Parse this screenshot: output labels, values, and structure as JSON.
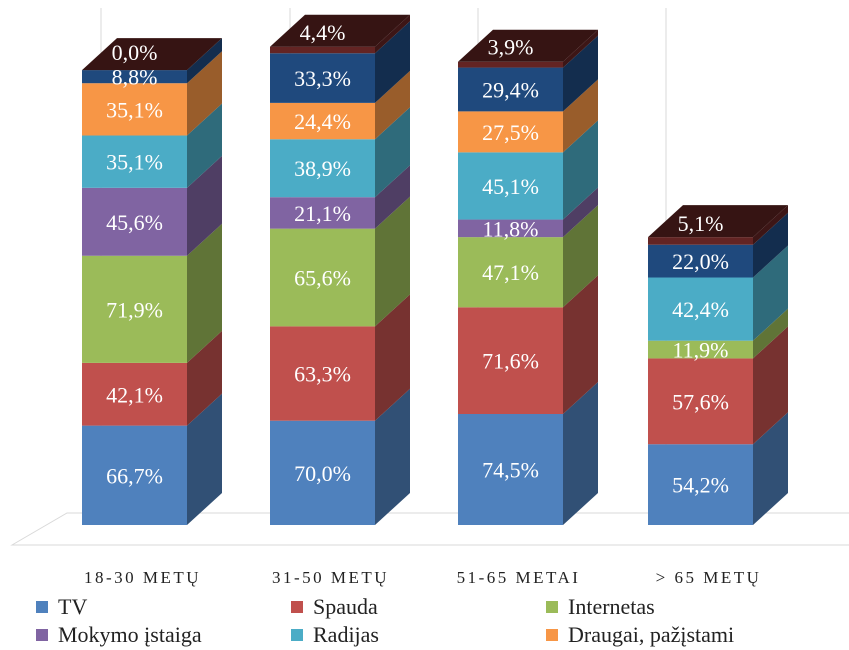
{
  "chart_data": {
    "type": "bar",
    "stacked": true,
    "three_d": true,
    "categories": [
      "18-30 METŲ",
      "31-50 METŲ",
      "51-65 METAI",
      "> 65 METŲ"
    ],
    "series": [
      {
        "name": "TV",
        "color": "#4f81bd",
        "values": [
          66.7,
          70.0,
          74.5,
          54.2
        ],
        "labels": [
          "66,7%",
          "70,0%",
          "74,5%",
          "54,2%"
        ]
      },
      {
        "name": "Spauda",
        "color": "#c0504d",
        "values": [
          42.1,
          63.3,
          71.6,
          57.6
        ],
        "labels": [
          "42,1%",
          "63,3%",
          "71,6%",
          "57,6%"
        ]
      },
      {
        "name": "Internetas",
        "color": "#9bbb59",
        "values": [
          71.9,
          65.6,
          47.1,
          11.9
        ],
        "labels": [
          "71,9%",
          "65,6%",
          "47,1%",
          "11,9%"
        ]
      },
      {
        "name": "Mokymo įstaiga",
        "color": "#8064a2",
        "values": [
          45.6,
          21.1,
          11.8,
          0
        ],
        "labels": [
          "45,6%",
          "21,1%",
          "11,8%",
          ""
        ]
      },
      {
        "name": "Radijas",
        "color": "#4bacc6",
        "values": [
          35.1,
          38.9,
          45.1,
          42.4
        ],
        "labels": [
          "35,1%",
          "38,9%",
          "45,1%",
          "42,4%"
        ]
      },
      {
        "name": "Draugai, pažįstami",
        "color": "#f79646",
        "values": [
          35.1,
          24.4,
          27.5,
          0
        ],
        "labels": [
          "35,1%",
          "24,4%",
          "27,5%",
          ""
        ]
      },
      {
        "name": "",
        "color": "#1f497d",
        "values": [
          8.8,
          33.3,
          29.4,
          22.0
        ],
        "labels": [
          "8,8%",
          "33,3%",
          "29,4%",
          "22,0%"
        ]
      },
      {
        "name": "",
        "color": "#632423",
        "values": [
          0.0,
          4.4,
          3.9,
          5.1
        ],
        "labels": [
          "0,0%",
          "4,4%",
          "3,9%",
          "5,1%"
        ]
      }
    ],
    "legend": {
      "placement": "bottom",
      "entries": [
        "TV",
        "Spauda",
        "Internetas",
        "Mokymo įstaiga",
        "Radijas",
        "Draugai, pažįstami"
      ]
    },
    "grid": true
  }
}
